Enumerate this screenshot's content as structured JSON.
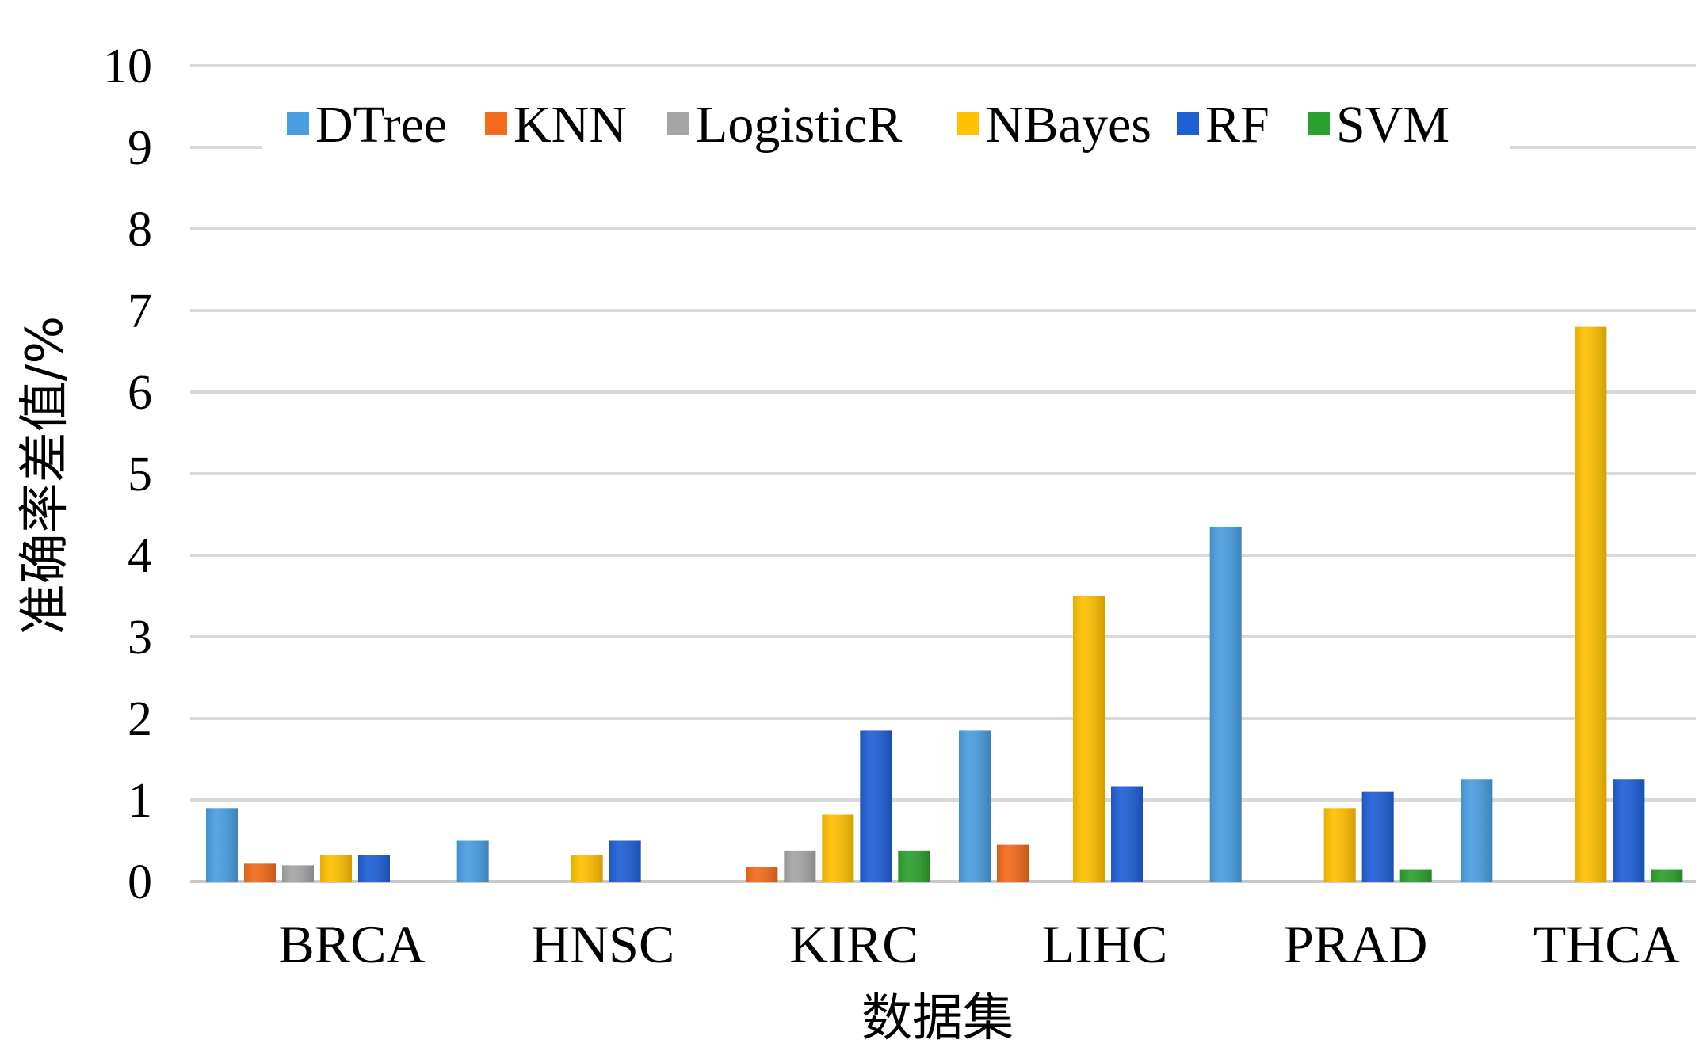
{
  "chart_data": {
    "type": "bar",
    "title": "",
    "xlabel": "数据集",
    "ylabel": "准确率差值/%",
    "ylim": [
      0,
      10
    ],
    "yticks": [
      "0",
      "1",
      "2",
      "3",
      "4",
      "5",
      "6",
      "7",
      "8",
      "9",
      "10"
    ],
    "grid": true,
    "legend_position": "top",
    "categories": [
      "BRCA",
      "HNSC",
      "KIRC",
      "LIHC",
      "PRAD",
      "THCA"
    ],
    "series": [
      {
        "name": "DTree",
        "color": "#4a9ee0",
        "values": [
          0.9,
          0.5,
          0,
          1.85,
          4.35,
          1.25
        ]
      },
      {
        "name": "KNN",
        "color": "#f26a1c",
        "values": [
          0.22,
          0,
          0.18,
          0.45,
          0,
          0
        ]
      },
      {
        "name": "LogisticR",
        "color": "#a5a5a5",
        "values": [
          0.2,
          0,
          0.38,
          0,
          0,
          0
        ]
      },
      {
        "name": "NBayes",
        "color": "#ffc000",
        "values": [
          0.33,
          0.33,
          0.82,
          3.5,
          0.9,
          6.8
        ]
      },
      {
        "name": "RF",
        "color": "#1f5fd6",
        "values": [
          0.33,
          0.5,
          1.85,
          1.17,
          1.1,
          1.25
        ]
      },
      {
        "name": "SVM",
        "color": "#2ca02c",
        "values": [
          0,
          0,
          0.38,
          0,
          0.15,
          0.15
        ]
      }
    ]
  }
}
